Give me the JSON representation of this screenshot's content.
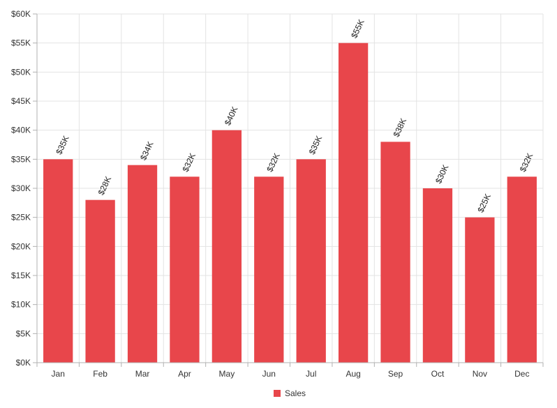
{
  "chart_data": {
    "type": "bar",
    "categories": [
      "Jan",
      "Feb",
      "Mar",
      "Apr",
      "May",
      "Jun",
      "Jul",
      "Aug",
      "Sep",
      "Oct",
      "Nov",
      "Dec"
    ],
    "series": [
      {
        "name": "Sales",
        "values": [
          35000,
          28000,
          34000,
          32000,
          40000,
          32000,
          35000,
          55000,
          38000,
          30000,
          25000,
          32000
        ],
        "data_labels": [
          "$35K",
          "$28K",
          "$34K",
          "$32K",
          "$40K",
          "$32K",
          "$35K",
          "$55K",
          "$38K",
          "$30K",
          "$25K",
          "$32K"
        ],
        "color": "#e8464b"
      }
    ],
    "y_ticks": [
      0,
      5000,
      10000,
      15000,
      20000,
      25000,
      30000,
      35000,
      40000,
      45000,
      50000,
      55000,
      60000
    ],
    "y_tick_labels": [
      "$0K",
      "$5K",
      "$10K",
      "$15K",
      "$20K",
      "$25K",
      "$30K",
      "$35K",
      "$40K",
      "$45K",
      "$50K",
      "$55K",
      "$60K"
    ],
    "ylim": [
      0,
      60000
    ],
    "grid": true,
    "legend_position": "bottom-center",
    "title": "",
    "xlabel": "",
    "ylabel": ""
  }
}
